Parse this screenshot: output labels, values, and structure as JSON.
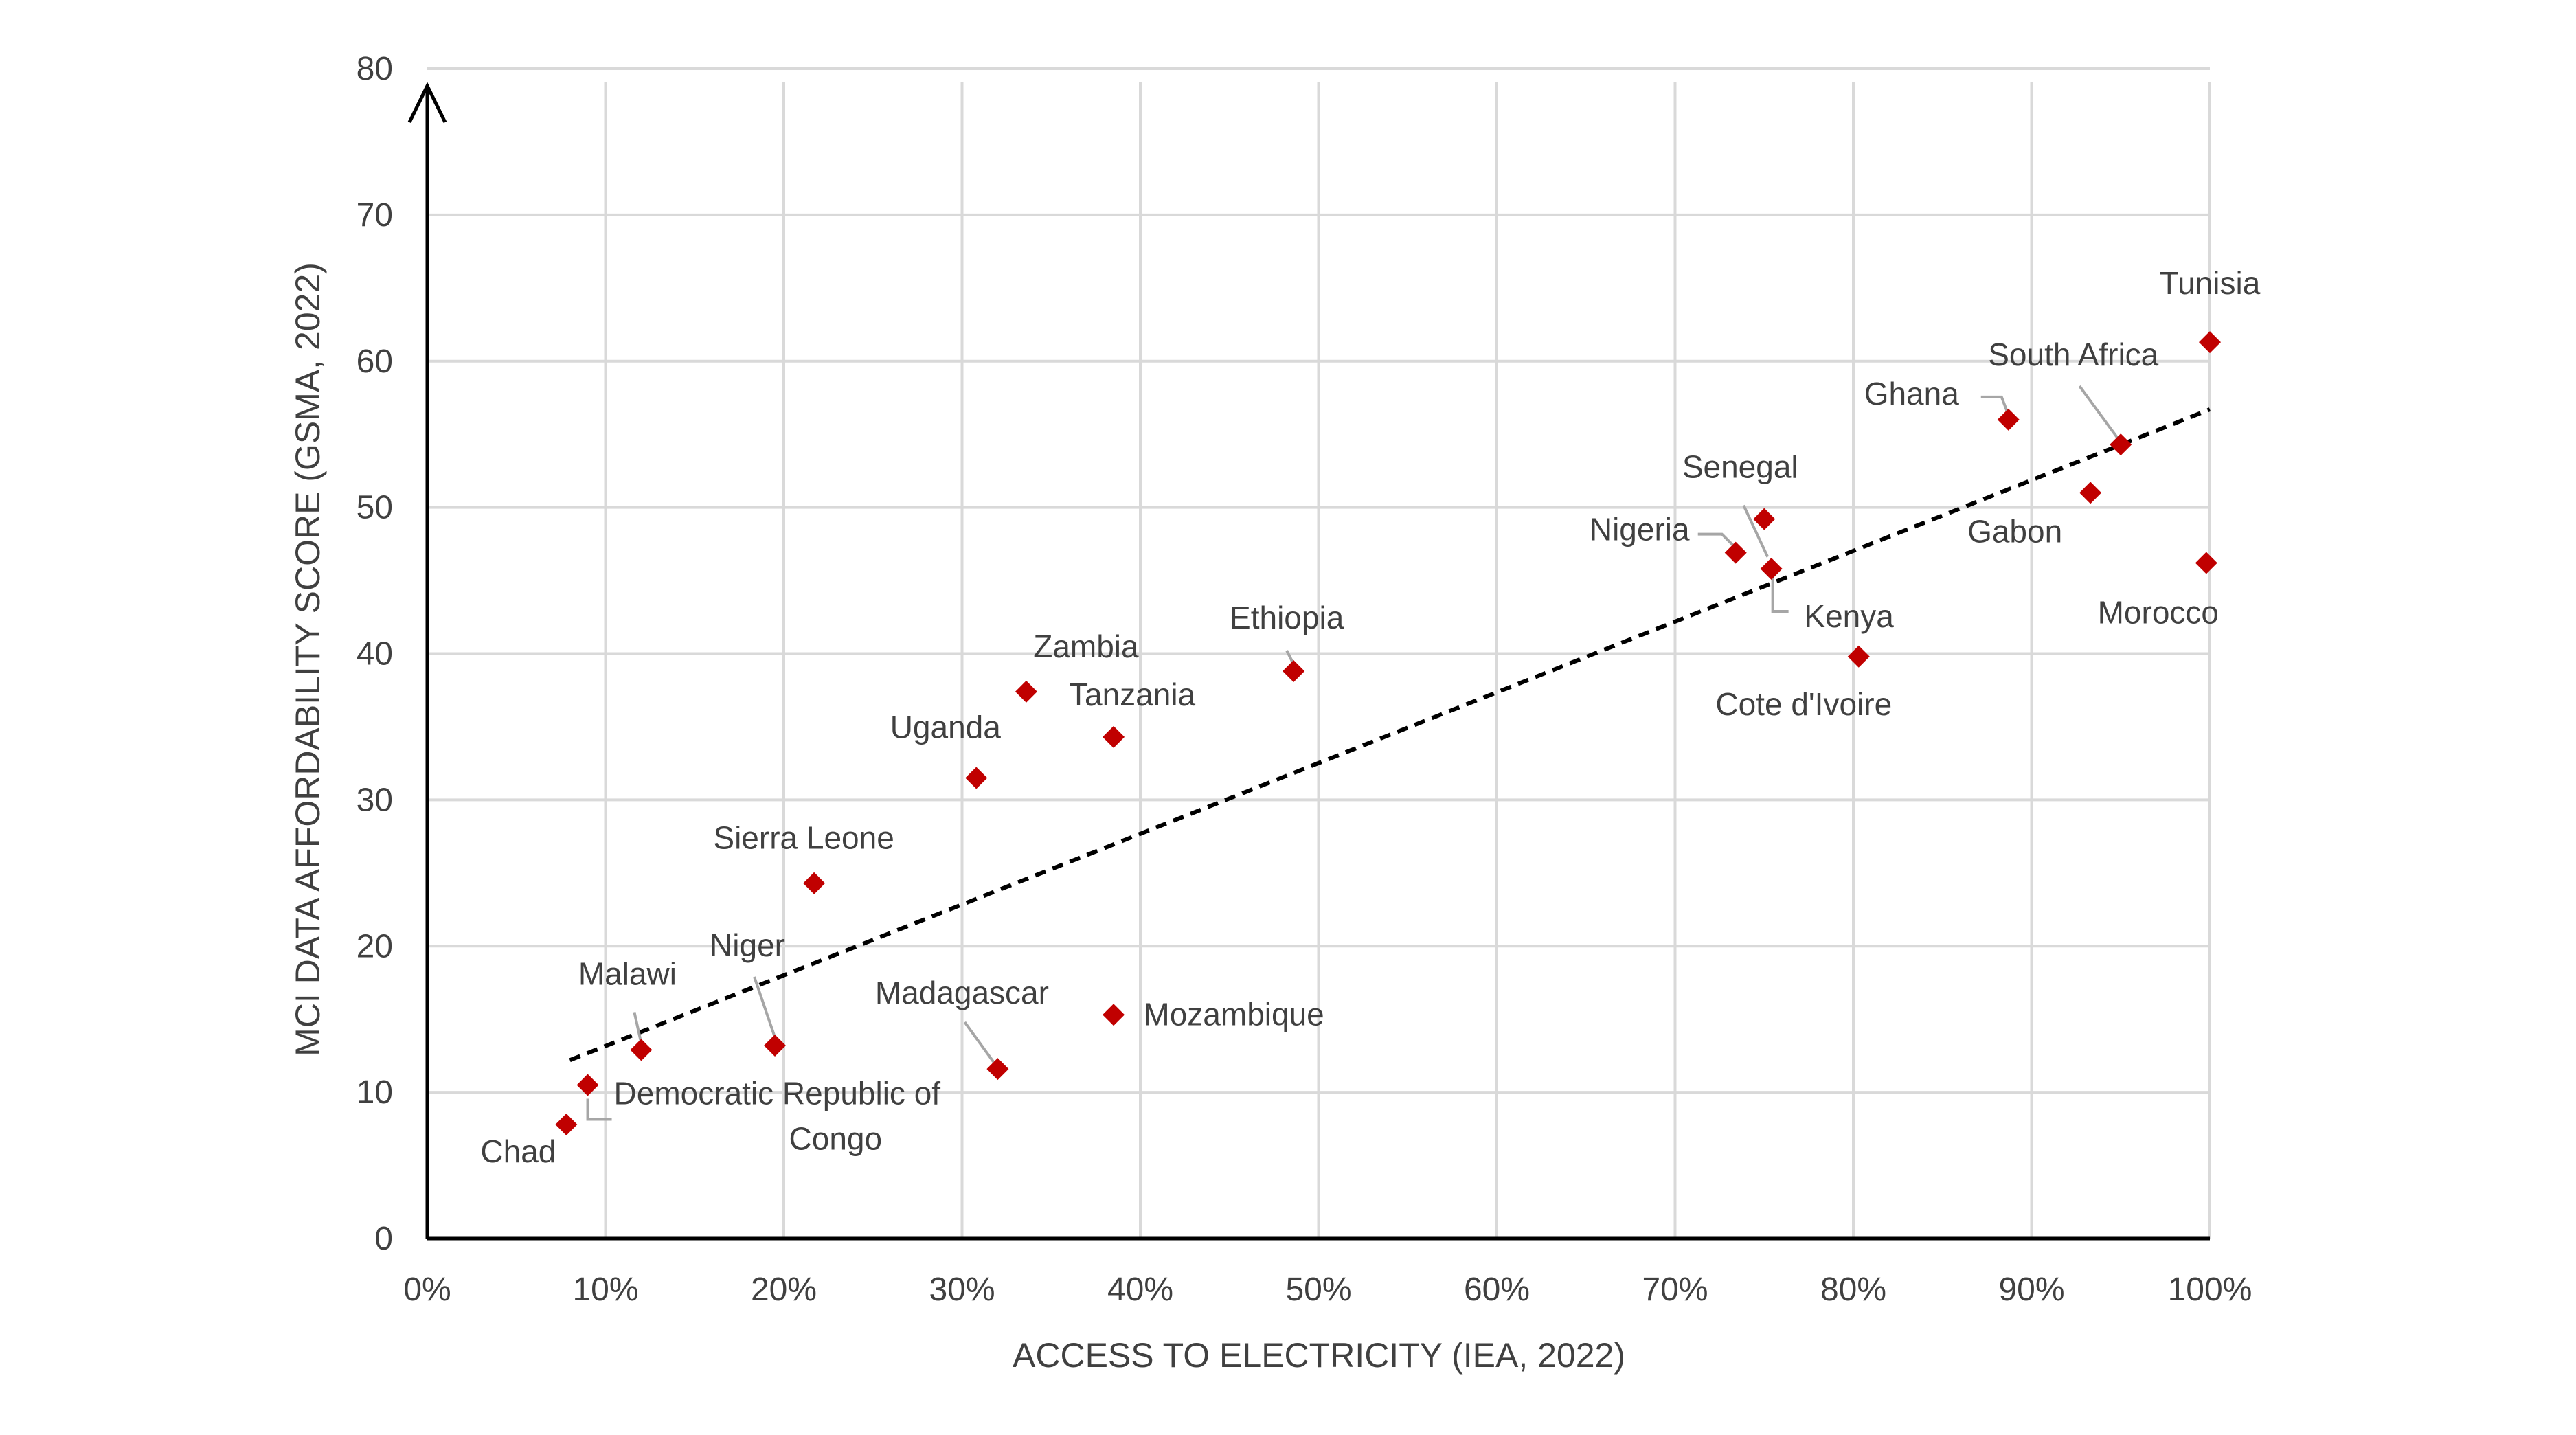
{
  "chart_data": {
    "type": "scatter",
    "xlabel": "ACCESS TO ELECTRICITY (IEA, 2022)",
    "ylabel": "MCI DATA AFFORDABILITY SCORE (GSMA, 2022)",
    "xlim": [
      0,
      100
    ],
    "ylim": [
      0,
      80
    ],
    "x_ticks": [
      "0%",
      "10%",
      "20%",
      "30%",
      "40%",
      "50%",
      "60%",
      "70%",
      "80%",
      "90%",
      "100%"
    ],
    "y_ticks": [
      "0",
      "10",
      "20",
      "30",
      "40",
      "50",
      "60",
      "70",
      "80"
    ],
    "grid": true,
    "marker_color": "#c00000",
    "trendline": {
      "style": "dashed",
      "color": "#000000",
      "x": [
        8,
        100
      ],
      "y": [
        12.2,
        56.7
      ]
    },
    "points": [
      {
        "label": "Chad",
        "x": 7.8,
        "y": 7.8
      },
      {
        "label": "Democratic Republic of Congo",
        "x": 9.0,
        "y": 10.5
      },
      {
        "label": "Malawi",
        "x": 12.0,
        "y": 12.9
      },
      {
        "label": "Niger",
        "x": 19.5,
        "y": 13.2
      },
      {
        "label": "Sierra Leone",
        "x": 21.7,
        "y": 24.3
      },
      {
        "label": "Madagascar",
        "x": 32.0,
        "y": 11.6
      },
      {
        "label": "Uganda",
        "x": 30.8,
        "y": 31.5
      },
      {
        "label": "Zambia",
        "x": 33.6,
        "y": 37.4
      },
      {
        "label": "Tanzania",
        "x": 38.5,
        "y": 34.3
      },
      {
        "label": "Mozambique",
        "x": 38.5,
        "y": 15.3
      },
      {
        "label": "Ethiopia",
        "x": 48.6,
        "y": 38.8
      },
      {
        "label": "Nigeria",
        "x": 73.4,
        "y": 46.9
      },
      {
        "label": "Senegal",
        "x": 75.0,
        "y": 49.2
      },
      {
        "label": "Kenya",
        "x": 75.4,
        "y": 45.8
      },
      {
        "label": "Cote d'Ivoire",
        "x": 80.3,
        "y": 39.8
      },
      {
        "label": "Ghana",
        "x": 88.7,
        "y": 56.0
      },
      {
        "label": "South Africa",
        "x": 95.0,
        "y": 54.3
      },
      {
        "label": "Gabon",
        "x": 93.3,
        "y": 51.0
      },
      {
        "label": "Tunisia",
        "x": 100.0,
        "y": 61.3
      },
      {
        "label": "Morocco",
        "x": 99.8,
        "y": 46.2
      }
    ]
  }
}
